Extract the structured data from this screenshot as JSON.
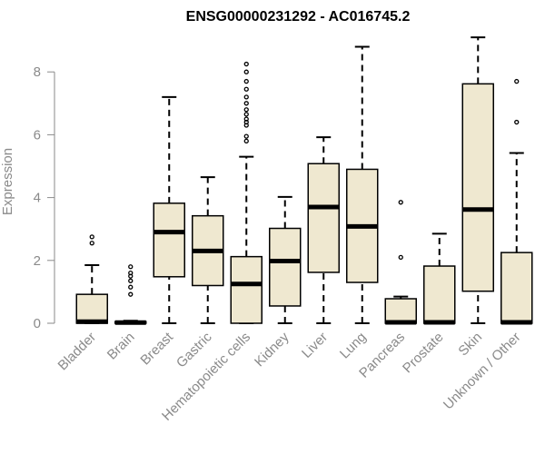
{
  "chart_data": {
    "type": "boxplot",
    "title": "ENSG00000231292 - AC016745.2",
    "ylabel": "Expression",
    "xlabel": "",
    "ylim": [
      0,
      9.2
    ],
    "yticks": [
      0,
      2,
      4,
      6,
      8
    ],
    "grid": false,
    "colors": {
      "box_fill": "#efe8d0",
      "box_stroke": "#000000",
      "axis": "#8a8a8a"
    },
    "categories": [
      "Bladder",
      "Brain",
      "Breast",
      "Gastric",
      "Hematopoietic cells",
      "Kidney",
      "Liver",
      "Lung",
      "Pancreas",
      "Prostate",
      "Skin",
      "Unknown / Other"
    ],
    "boxes": [
      {
        "min": 0,
        "q1": 0,
        "median": 0.05,
        "q3": 0.92,
        "max": 1.85,
        "outliers": [
          2.55,
          2.75
        ]
      },
      {
        "min": 0,
        "q1": 0,
        "median": 0.02,
        "q3": 0.05,
        "max": 0.08,
        "outliers": [
          0.92,
          1.15,
          1.35,
          1.5,
          1.6,
          1.8
        ]
      },
      {
        "min": 0,
        "q1": 1.48,
        "median": 2.9,
        "q3": 3.82,
        "max": 7.2,
        "outliers": []
      },
      {
        "min": 0,
        "q1": 1.2,
        "median": 2.3,
        "q3": 3.42,
        "max": 4.65,
        "outliers": []
      },
      {
        "min": 0,
        "q1": 0,
        "median": 1.25,
        "q3": 2.12,
        "max": 5.3,
        "outliers": [
          5.8,
          5.95,
          6.3,
          6.4,
          6.5,
          6.65,
          6.8,
          7.0,
          7.2,
          7.45,
          7.7,
          8.0,
          8.25
        ]
      },
      {
        "min": 0,
        "q1": 0.55,
        "median": 1.98,
        "q3": 3.02,
        "max": 4.02,
        "outliers": []
      },
      {
        "min": 0,
        "q1": 1.62,
        "median": 3.7,
        "q3": 5.08,
        "max": 5.92,
        "outliers": []
      },
      {
        "min": 0,
        "q1": 1.3,
        "median": 3.08,
        "q3": 4.9,
        "max": 8.8,
        "outliers": []
      },
      {
        "min": 0,
        "q1": 0,
        "median": 0.03,
        "q3": 0.78,
        "max": 0.85,
        "outliers": [
          2.1,
          3.85
        ]
      },
      {
        "min": 0,
        "q1": 0,
        "median": 0.03,
        "q3": 1.82,
        "max": 2.85,
        "outliers": []
      },
      {
        "min": 0,
        "q1": 1.02,
        "median": 3.62,
        "q3": 7.62,
        "max": 9.1,
        "outliers": []
      },
      {
        "min": 0,
        "q1": 0,
        "median": 0.03,
        "q3": 2.25,
        "max": 5.42,
        "outliers": [
          6.4,
          7.7
        ]
      }
    ]
  }
}
